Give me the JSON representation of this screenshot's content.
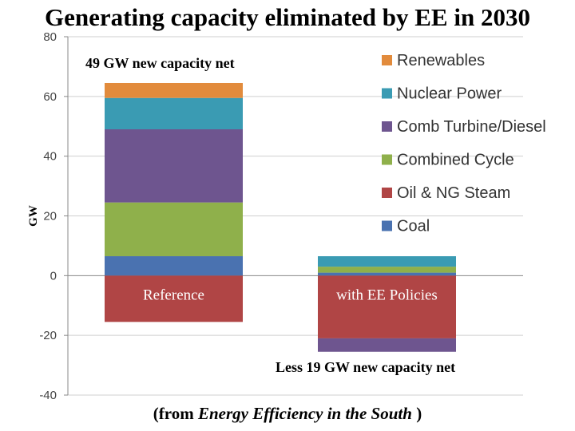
{
  "title": "Generating capacity eliminated by EE in 2030",
  "caption": {
    "prefix": "(from ",
    "emphasis": "Energy Efficiency in the South",
    "suffix": " )"
  },
  "colors": {
    "Coal": "#4a72b0",
    "Oil & NG Steam": "#b04545",
    "Combined Cycle": "#8fb04b",
    "Comb Turbine/Diesel": "#6e558f",
    "Nuclear Power": "#3a9bb3",
    "Renewables": "#e28b3c",
    "gridline": "#cfcfcf",
    "axis": "#888888"
  },
  "chart_data": {
    "type": "bar",
    "stacked": true,
    "ylabel": "GW",
    "ylim": [
      -40,
      80
    ],
    "yticks": [
      -40,
      -20,
      0,
      20,
      40,
      60,
      80
    ],
    "grid": true,
    "categories": [
      "Reference",
      "with EE Policies"
    ],
    "series": [
      {
        "name": "Coal",
        "values": [
          6.5,
          1
        ]
      },
      {
        "name": "Oil & NG Steam",
        "values": [
          -15.5,
          -21
        ]
      },
      {
        "name": "Combined Cycle",
        "values": [
          18,
          2
        ]
      },
      {
        "name": "Comb Turbine/Diesel",
        "values": [
          24.5,
          -4.5
        ]
      },
      {
        "name": "Nuclear Power",
        "values": [
          10.5,
          3.5
        ]
      },
      {
        "name": "Renewables",
        "values": [
          5,
          0
        ]
      }
    ],
    "legend_order": [
      "Renewables",
      "Nuclear Power",
      "Comb Turbine/Diesel",
      "Combined Cycle",
      "Oil & NG Steam",
      "Coal"
    ],
    "legend_position": "right",
    "annotations": [
      {
        "text": "49 GW new capacity net",
        "near": "Reference top"
      },
      {
        "text": "Less 19 GW  new capacity net",
        "near": "with EE Policies bottom"
      }
    ]
  }
}
